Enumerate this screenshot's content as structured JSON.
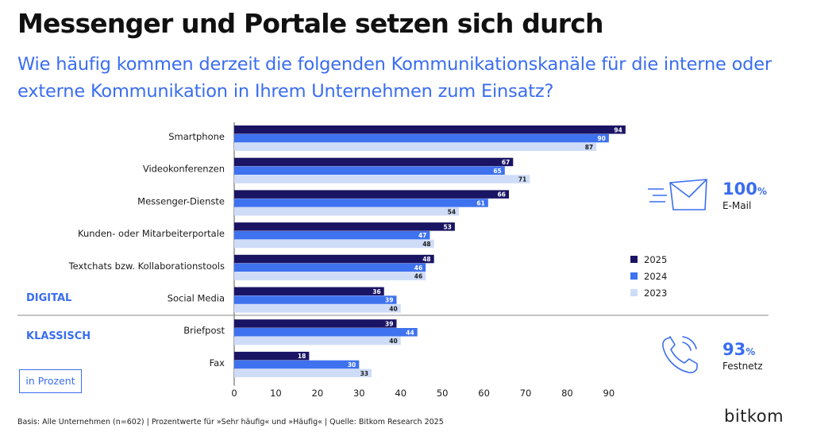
{
  "title": "Messenger und Portale setzen sich durch",
  "subtitle": "Wie häufig kommen derzeit die folgenden Kommunikationskanäle für die interne oder externe Kommunikation in Ihrem Unternehmen zum Einsatz?",
  "unit_label": "in Prozent",
  "groups": {
    "digital": "DIGITAL",
    "classic": "KLASSISCH"
  },
  "kpis": [
    {
      "value": "100",
      "unit": "%",
      "label": "E-Mail",
      "icon": "email-icon"
    },
    {
      "value": "93",
      "unit": "%",
      "label": "Festnetz",
      "icon": "phone-icon"
    }
  ],
  "footer": "Basis: Alle Unternehmen (n=602) | Prozentwerte für »Sehr häufig« und »Häufig« | Quelle: Bitkom Research 2025",
  "logo": "bitkom",
  "colors": {
    "accent": "#3a6df0",
    "s2025": "#1a1464",
    "s2024": "#3e72ee",
    "s2023": "#cfdcf8"
  },
  "chart_data": {
    "type": "bar",
    "orientation": "horizontal",
    "categories": [
      "Smartphone",
      "Videokonferenzen",
      "Messenger-Dienste",
      "Kunden- oder Mitarbeiterportale",
      "Textchats bzw. Kollaborationstools",
      "Social Media",
      "Briefpost",
      "Fax"
    ],
    "series": [
      {
        "name": "2025",
        "color": "#1a1464",
        "values": [
          94,
          67,
          66,
          53,
          48,
          36,
          39,
          18
        ]
      },
      {
        "name": "2024",
        "color": "#3e72ee",
        "values": [
          90,
          65,
          61,
          47,
          46,
          39,
          44,
          30
        ]
      },
      {
        "name": "2023",
        "color": "#cfdcf8",
        "values": [
          87,
          71,
          54,
          48,
          46,
          40,
          40,
          33
        ]
      }
    ],
    "xlim": [
      0,
      100
    ],
    "xticks": [
      0,
      10,
      20,
      30,
      40,
      50,
      60,
      70,
      80,
      90
    ],
    "legend": "right",
    "grid": false
  }
}
